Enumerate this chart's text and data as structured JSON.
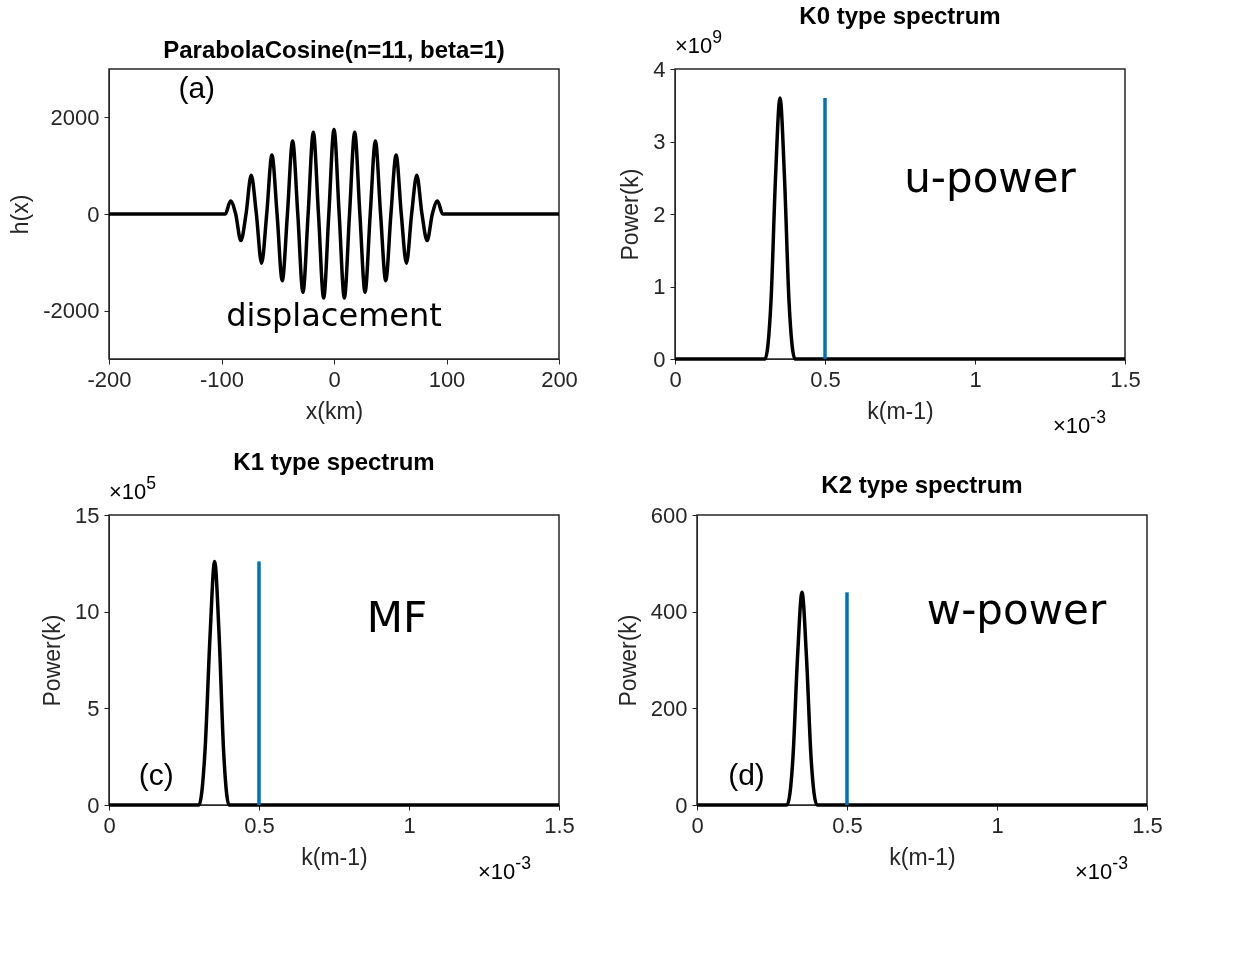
{
  "chart_data": [
    {
      "type": "line",
      "title": "ParabolaCosine(n=11, beta=1)",
      "xlabel": "x(km)",
      "ylabel": "h(x)",
      "xlim": [
        -200,
        200
      ],
      "ylim": [
        -3000,
        3000
      ],
      "xticks": [
        -200,
        -100,
        0,
        100,
        200
      ],
      "yticks": [
        -2000,
        0,
        2000
      ],
      "marker": "none",
      "line_style": "solid",
      "series": [
        {
          "color": "#000000",
          "x": [
            -200,
            -100,
            -96.6,
            -92,
            -87.4,
            -82.8,
            -78.2,
            -73.6,
            -69,
            -64.4,
            -59.8,
            -55.2,
            -50.6,
            -46,
            -41.4,
            -36.8,
            -32.2,
            -27.6,
            -23,
            -18.4,
            -13.8,
            -9.2,
            -4.6,
            0,
            4.6,
            9.2,
            13.8,
            18.4,
            23,
            27.6,
            32.2,
            36.8,
            41.4,
            46,
            50.6,
            55.2,
            59.8,
            64.4,
            69,
            73.6,
            78.2,
            82.8,
            87.4,
            92,
            96.6,
            100,
            200
          ],
          "values": [
            0,
            0,
            0,
            270,
            0,
            -550,
            0,
            800,
            0,
            -1020,
            0,
            1220,
            0,
            -1380,
            0,
            1510,
            0,
            -1620,
            0,
            1690,
            0,
            -1740,
            0,
            1750,
            0,
            -1740,
            0,
            1690,
            0,
            -1620,
            0,
            1510,
            0,
            -1380,
            0,
            1220,
            0,
            -1020,
            0,
            800,
            0,
            -550,
            0,
            270,
            0,
            0,
            0
          ]
        }
      ],
      "annotations": [
        "(a)",
        "displacement"
      ]
    },
    {
      "type": "line",
      "title": "K0 type spectrum",
      "xlabel": "k(m-1)",
      "ylabel": "Power(k)",
      "xlim": [
        0,
        1.5
      ],
      "ylim": [
        0,
        4
      ],
      "xticks": [
        0,
        0.5,
        1,
        1.5
      ],
      "yticks": [
        0,
        1,
        2,
        3,
        4
      ],
      "marker": "none",
      "line_style": "solid",
      "series": [
        {
          "color": "#000000",
          "x": [
            0,
            0.29,
            0.3,
            0.32,
            0.335,
            0.35,
            0.365,
            0.38,
            0.4,
            1.5
          ],
          "values": [
            0,
            0,
            0,
            0.8,
            2.5,
            3.6,
            2.5,
            0.8,
            0,
            0
          ]
        },
        {
          "color": "#0072bd",
          "x": [
            0.5,
            0.5
          ],
          "values": [
            0,
            3.6
          ]
        }
      ],
      "annotations": [
        "×10$^{9}$",
        "u-power",
        "×10$^{-3}$"
      ]
    },
    {
      "type": "line",
      "title": "K1 type spectrum",
      "xlabel": "k(m-1)",
      "ylabel": "Power(k)",
      "xlim": [
        0,
        1.5
      ],
      "ylim": [
        0,
        15
      ],
      "xticks": [
        0,
        0.5,
        1,
        1.5
      ],
      "yticks": [
        0,
        5,
        10,
        15
      ],
      "marker": "none",
      "line_style": "solid",
      "series": [
        {
          "color": "#000000",
          "x": [
            0,
            0.29,
            0.3,
            0.32,
            0.337,
            0.352,
            0.367,
            0.382,
            0.4,
            1.5
          ],
          "values": [
            0,
            0,
            0,
            2.8,
            8.8,
            12.6,
            8.8,
            2.8,
            0,
            0
          ]
        },
        {
          "color": "#0072bd",
          "x": [
            0.5,
            0.5
          ],
          "values": [
            0,
            12.6
          ]
        }
      ],
      "annotations": [
        "×10$^{5}$",
        "MF",
        "(c)",
        "×10$^{-3}$"
      ]
    },
    {
      "type": "line",
      "title": "K2 type spectrum",
      "xlabel": "k(m-1)",
      "ylabel": "Power(k)",
      "xlim": [
        0,
        1.5
      ],
      "ylim": [
        0,
        600
      ],
      "xticks": [
        0,
        0.5,
        1,
        1.5
      ],
      "yticks": [
        0,
        200,
        400,
        600
      ],
      "marker": "none",
      "line_style": "solid",
      "series": [
        {
          "color": "#000000",
          "x": [
            0,
            0.29,
            0.3,
            0.32,
            0.335,
            0.35,
            0.365,
            0.38,
            0.4,
            1.5
          ],
          "values": [
            0,
            0,
            0,
            100,
            305,
            440,
            305,
            100,
            0,
            0
          ]
        },
        {
          "color": "#0072bd",
          "x": [
            0.5,
            0.5
          ],
          "values": [
            0,
            440
          ]
        }
      ],
      "annotations": [
        "w-power",
        "(d)",
        "×10$^{-3}$"
      ]
    }
  ]
}
